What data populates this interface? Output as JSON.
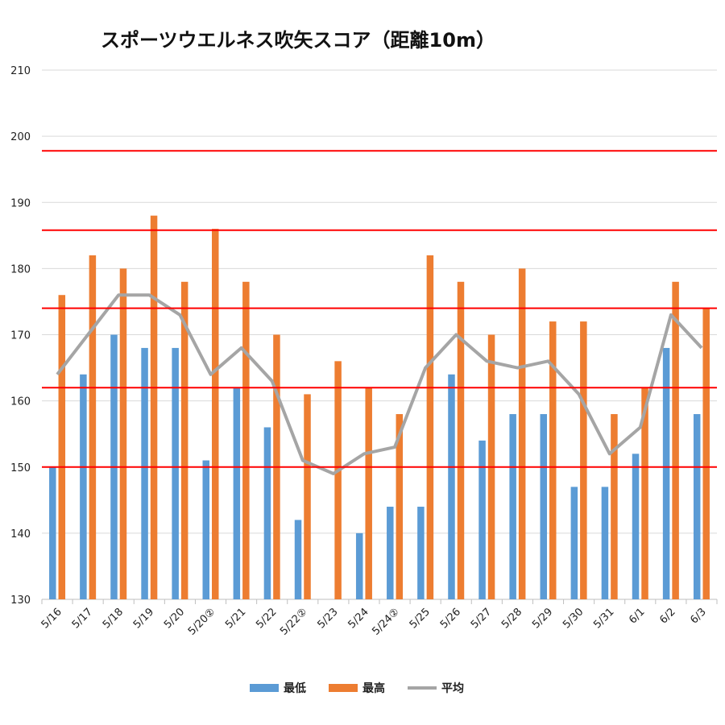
{
  "chart_data": {
    "type": "bar",
    "title": "スポーツウエルネス吹矢スコア（距離10m）",
    "categories": [
      "5/16",
      "5/17",
      "5/18",
      "5/19",
      "5/20",
      "5/20②",
      "5/21",
      "5/22",
      "5/22②",
      "5/23",
      "5/24",
      "5/24②",
      "5/25",
      "5/26",
      "5/27",
      "5/28",
      "5/29",
      "5/30",
      "5/31",
      "6/1",
      "6/2",
      "6/3"
    ],
    "series": [
      {
        "name": "最低",
        "kind": "bar",
        "color": "#5b9bd5",
        "values": [
          150,
          164,
          170,
          168,
          168,
          151,
          162,
          156,
          142,
          null,
          140,
          144,
          144,
          164,
          154,
          158,
          158,
          147,
          147,
          152,
          168,
          158
        ]
      },
      {
        "name": "最高",
        "kind": "bar",
        "color": "#ed7d31",
        "values": [
          176,
          182,
          180,
          188,
          178,
          186,
          178,
          170,
          161,
          166,
          162,
          158,
          182,
          178,
          170,
          180,
          172,
          172,
          158,
          162,
          178,
          174
        ]
      },
      {
        "name": "平均",
        "kind": "line",
        "color": "#a5a5a5",
        "values": [
          164,
          170,
          176,
          176,
          173,
          164,
          168,
          163,
          151,
          149,
          152,
          153,
          165,
          170,
          166,
          165,
          166,
          161,
          152,
          156,
          173,
          168
        ]
      }
    ],
    "ylim": [
      130,
      210
    ],
    "yticks": [
      130,
      140,
      150,
      160,
      170,
      180,
      190,
      200,
      210
    ],
    "reference_lines": [
      150,
      162,
      174,
      185.8,
      197.8
    ],
    "reference_color": "#ff0000",
    "grid": true,
    "legend_position": "bottom"
  }
}
